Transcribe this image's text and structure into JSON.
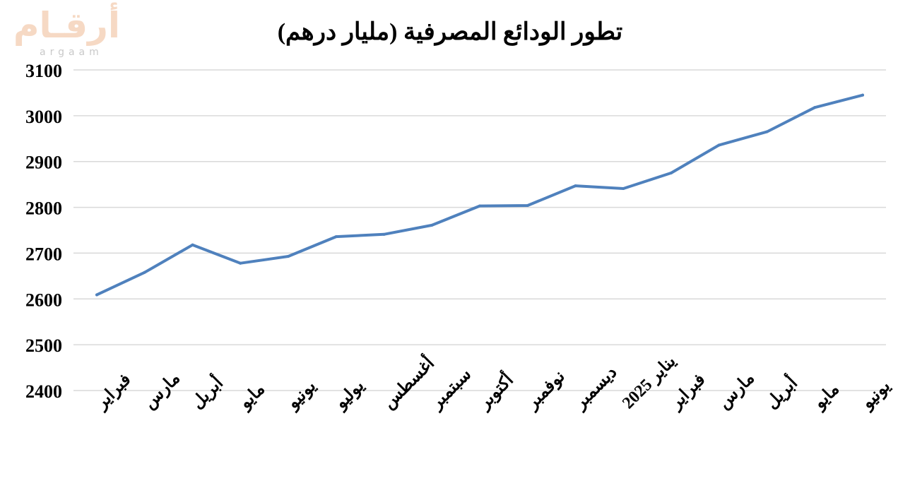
{
  "logo": {
    "arabic": "أرقـام",
    "latin": "argaam"
  },
  "chart_data": {
    "type": "line",
    "title": "تطور الودائع المصرفية (مليار درهم)",
    "xlabel": "",
    "ylabel": "",
    "categories": [
      "فبراير",
      "مارس",
      "أبريل",
      "مايو",
      "يونيو",
      "يوليو",
      "أغسطس",
      "سبتمبر",
      "أكتوبر",
      "نوفمبر",
      "ديسمبر",
      "يناير 2025",
      "فبراير",
      "مارس",
      "أبريل",
      "مايو",
      "يونيو"
    ],
    "values": [
      2609,
      2658,
      2718,
      2678,
      2693,
      2736,
      2741,
      2761,
      2803,
      2804,
      2847,
      2841,
      2875,
      2936,
      2965,
      3018,
      3045
    ],
    "ylim": [
      2400,
      3100
    ],
    "yticks": [
      "3100",
      "3000",
      "2900",
      "2800",
      "2700",
      "2600",
      "2500",
      "2400"
    ],
    "grid": true,
    "color": "#4f81bd"
  }
}
